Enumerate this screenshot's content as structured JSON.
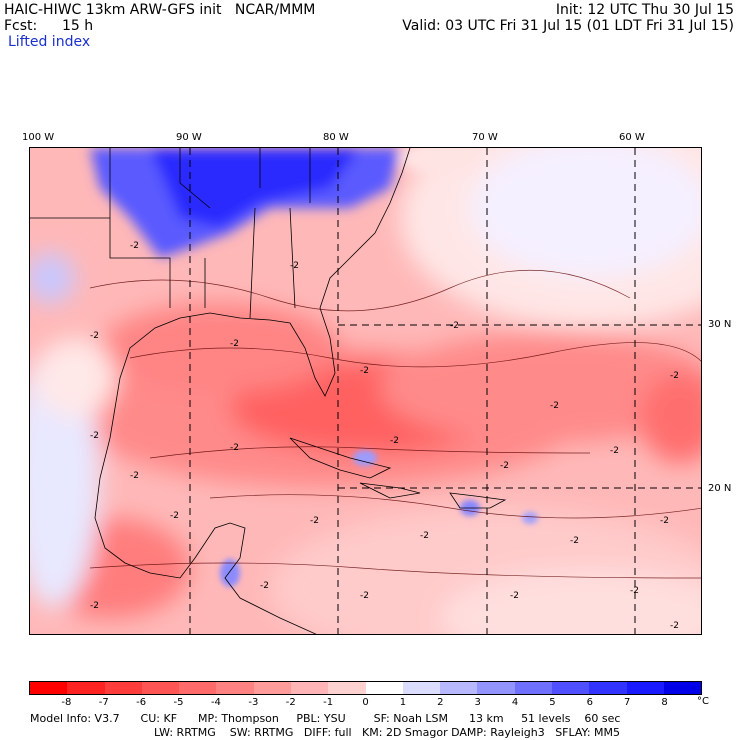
{
  "header": {
    "title": "HAIC-HIWC 13km ARW-GFS init   NCAR/MMM",
    "init": "Init: 12 UTC Thu 30 Jul 15",
    "fcst_label": "Fcst:",
    "fcst_value": "15 h",
    "valid": "Valid: 03 UTC Fri 31 Jul 15 (01 LDT Fri 31 Jul 15)",
    "field": "Lifted index"
  },
  "map": {
    "lon_labels": [
      "100 W",
      "90 W",
      "80 W",
      "70 W",
      "60 W"
    ],
    "lat_labels": [
      "30 N",
      "20 N"
    ],
    "contour_labels": [
      "-2",
      "-2",
      "-2",
      "-2",
      "-2",
      "-2",
      "-2",
      "-2",
      "-2",
      "-2",
      "-2",
      "-2",
      "-2",
      "-2",
      "-2",
      "-2",
      "-2",
      "-2",
      "-2",
      "-2",
      "-2",
      "-2",
      "-2",
      "-2",
      "-2"
    ]
  },
  "colorbar": {
    "labels": [
      "-8",
      "-7",
      "-6",
      "-5",
      "-4",
      "-3",
      "-2",
      "-1",
      "0",
      "1",
      "2",
      "3",
      "4",
      "5",
      "6",
      "7",
      "8"
    ],
    "unit": "°C",
    "colors": [
      "#ff0000",
      "#ff2222",
      "#ff3d3d",
      "#ff5555",
      "#ff6b6b",
      "#ff8282",
      "#ff9b9b",
      "#ffb5b5",
      "#ffd2d2",
      "#ffffff",
      "#dcdcff",
      "#b8b8ff",
      "#9494ff",
      "#7070ff",
      "#5050ff",
      "#3333ff",
      "#1a1aff",
      "#0000e6"
    ]
  },
  "footer": {
    "line1": "Model Info: V3.7      CU: KF      MP: Thompson     PBL: YSU        SF: Noah LSM      13 km     51 levels    60 sec",
    "line2": "LW: RRTMG    SW: RRTMG   DIFF: full   KM: 2D Smagor DAMP: Rayleigh3   SFLAY: MM5"
  }
}
